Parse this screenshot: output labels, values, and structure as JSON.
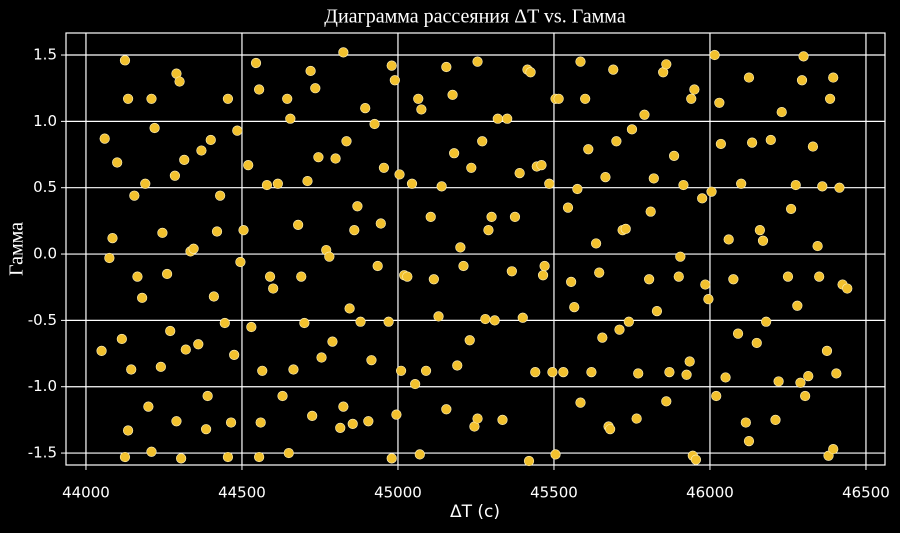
{
  "chart_data": {
    "type": "scatter",
    "title": "Диаграмма рассеяния ΔT vs. Гамма",
    "xlabel": "ΔT (c)",
    "ylabel": "Гамма",
    "color": "#f2c12e",
    "grid": true,
    "xlim": [
      43936,
      46561
    ],
    "ylim": [
      -1.59,
      1.666
    ],
    "xticks": [
      44000,
      44500,
      45000,
      45500,
      46000,
      46500
    ],
    "yticks": [
      -1.5,
      {
        "value": -1.0,
        "label": "-1.0"
      },
      -0.5,
      {
        "value": 0.0,
        "label": "0.0"
      },
      0.5,
      {
        "value": 1.0,
        "label": "1.0"
      },
      1.5
    ],
    "x": [
      44060,
      44050,
      44075,
      44085,
      44100,
      44115,
      44125,
      44125,
      44135,
      44135,
      44145,
      44155,
      44165,
      44180,
      44190,
      44200,
      44210,
      44210,
      44220,
      44240,
      44245,
      44260,
      44270,
      44285,
      44290,
      44290,
      44300,
      44305,
      44315,
      44320,
      44335,
      44345,
      44360,
      44370,
      44385,
      44390,
      44400,
      44410,
      44420,
      44430,
      44445,
      44455,
      44455,
      44465,
      44475,
      44485,
      44495,
      44505,
      44520,
      44530,
      44545,
      44555,
      44555,
      44560,
      44565,
      44580,
      44590,
      44600,
      44615,
      44630,
      44645,
      44650,
      44655,
      44665,
      44680,
      44690,
      44700,
      44710,
      44720,
      44725,
      44735,
      44745,
      44755,
      44770,
      44780,
      44790,
      44800,
      44815,
      44825,
      44825,
      44835,
      44845,
      44855,
      44860,
      44870,
      44880,
      44895,
      44905,
      44915,
      44925,
      44935,
      44945,
      44955,
      44970,
      44980,
      44980,
      44990,
      44995,
      45005,
      45010,
      45020,
      45030,
      45045,
      45055,
      45065,
      45070,
      45075,
      45090,
      45105,
      45115,
      45130,
      45140,
      45155,
      45155,
      45175,
      45180,
      45190,
      45200,
      45210,
      45230,
      45235,
      45245,
      45255,
      45255,
      45270,
      45280,
      45290,
      45300,
      45310,
      45320,
      45335,
      45350,
      45365,
      45375,
      45390,
      45400,
      45415,
      45420,
      45425,
      45440,
      45445,
      45460,
      45465,
      45470,
      45485,
      45495,
      45505,
      45505,
      45515,
      45530,
      45545,
      45555,
      45565,
      45575,
      45585,
      45585,
      45600,
      45610,
      45620,
      45635,
      45645,
      45655,
      45665,
      45675,
      45680,
      45690,
      45700,
      45710,
      45720,
      45730,
      45740,
      45750,
      45765,
      45770,
      45790,
      45805,
      45810,
      45820,
      45830,
      45850,
      45860,
      45860,
      45870,
      45885,
      45900,
      45905,
      45915,
      45925,
      45935,
      45940,
      45945,
      45950,
      45955,
      45975,
      45985,
      45995,
      46005,
      46015,
      46020,
      46030,
      46035,
      46050,
      46060,
      46075,
      46090,
      46100,
      46115,
      46125,
      46125,
      46135,
      46150,
      46160,
      46170,
      46180,
      46195,
      46210,
      46220,
      46230,
      46250,
      46260,
      46275,
      46280,
      46290,
      46295,
      46300,
      46305,
      46315,
      46330,
      46345,
      46350,
      46360,
      46375,
      46380,
      46385,
      46395,
      46395,
      46405,
      46415,
      46425,
      46440
    ],
    "values": [
      0.87,
      -0.73,
      -0.03,
      0.12,
      0.69,
      -0.64,
      1.46,
      -1.53,
      1.17,
      -1.33,
      -0.87,
      0.44,
      -0.17,
      -0.33,
      0.53,
      -1.15,
      1.17,
      -1.49,
      0.95,
      -0.85,
      0.16,
      -0.15,
      -0.58,
      0.59,
      1.36,
      -1.26,
      1.3,
      -1.54,
      0.71,
      -0.72,
      0.02,
      0.04,
      -0.68,
      0.78,
      -1.32,
      -1.07,
      0.86,
      -0.32,
      0.17,
      0.44,
      -0.52,
      1.17,
      -1.53,
      -1.27,
      -0.76,
      0.93,
      -0.06,
      0.18,
      0.67,
      -0.55,
      1.44,
      1.24,
      -1.53,
      -1.27,
      -0.88,
      0.52,
      -0.17,
      -0.26,
      0.53,
      -1.07,
      1.17,
      -1.5,
      1.02,
      -0.87,
      0.22,
      -0.17,
      -0.52,
      0.55,
      1.38,
      -1.22,
      1.25,
      0.73,
      -0.78,
      0.03,
      -0.02,
      -0.66,
      0.72,
      -1.31,
      1.52,
      -1.15,
      0.85,
      -0.41,
      -1.28,
      0.18,
      0.36,
      -0.51,
      1.1,
      -1.26,
      -0.8,
      0.98,
      -0.09,
      0.23,
      0.65,
      -0.51,
      1.42,
      -1.54,
      1.31,
      -1.21,
      0.6,
      -0.88,
      -0.16,
      -0.17,
      0.53,
      -0.98,
      1.17,
      -1.51,
      1.09,
      -0.88,
      0.28,
      -0.19,
      -0.47,
      0.51,
      1.41,
      -1.17,
      1.2,
      0.76,
      -0.84,
      0.05,
      -0.09,
      -0.65,
      0.65,
      -1.3,
      1.45,
      -1.24,
      0.85,
      -0.49,
      0.18,
      0.28,
      -0.5,
      1.02,
      -1.25,
      1.02,
      -0.13,
      0.28,
      0.61,
      -0.48,
      1.39,
      -1.56,
      1.37,
      -0.89,
      0.66,
      0.67,
      -0.16,
      -0.09,
      0.53,
      -0.89,
      1.17,
      -1.51,
      1.17,
      -0.89,
      0.35,
      -0.21,
      -0.4,
      0.49,
      1.45,
      -1.12,
      1.17,
      0.79,
      -0.89,
      0.08,
      -0.14,
      -0.63,
      0.58,
      -1.3,
      -1.32,
      1.39,
      0.85,
      -0.57,
      0.18,
      0.19,
      -0.51,
      0.94,
      -1.24,
      -0.9,
      1.05,
      -0.19,
      0.32,
      0.57,
      -0.43,
      1.37,
      1.43,
      -1.11,
      -0.89,
      0.74,
      -0.17,
      -0.02,
      0.52,
      -0.91,
      -0.81,
      1.17,
      -1.52,
      1.24,
      -1.55,
      0.42,
      -0.23,
      -0.34,
      0.47,
      1.5,
      -1.07,
      1.14,
      0.83,
      -0.93,
      0.11,
      -0.19,
      -0.6,
      0.53,
      -1.27,
      1.33,
      -1.41,
      0.84,
      -0.67,
      0.18,
      0.1,
      -0.51,
      0.86,
      -1.25,
      -0.96,
      1.07,
      -0.17,
      0.34,
      0.52,
      -0.39,
      -0.97,
      1.31,
      1.49,
      -1.07,
      -0.92,
      0.81,
      0.06,
      -0.17,
      0.51,
      -0.73,
      -1.52,
      1.17,
      1.33,
      -1.47,
      -0.9,
      0.5,
      -0.23,
      -0.26
    ]
  }
}
